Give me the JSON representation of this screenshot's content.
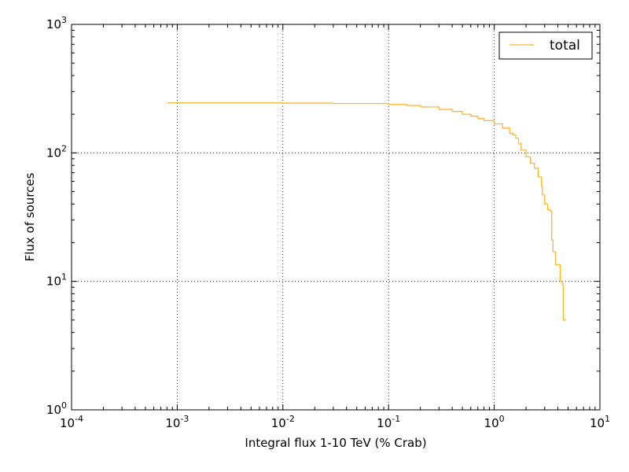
{
  "chart_data": {
    "type": "line",
    "xlabel": "Integral flux 1-10 TeV (% Crab)",
    "ylabel": "Flux of sources",
    "xscale": "log",
    "yscale": "log",
    "xlim": [
      0.0001,
      10
    ],
    "ylim": [
      1,
      1000
    ],
    "grid": true,
    "legend_position": "top-right",
    "x_ticks": [
      {
        "base": "10",
        "exp": "-4",
        "value": 0.0001
      },
      {
        "base": "10",
        "exp": "-3",
        "value": 0.001
      },
      {
        "base": "10",
        "exp": "-2",
        "value": 0.01
      },
      {
        "base": "10",
        "exp": "-1",
        "value": 0.1
      },
      {
        "base": "10",
        "exp": "0",
        "value": 1
      },
      {
        "base": "10",
        "exp": "1",
        "value": 10
      }
    ],
    "y_ticks": [
      {
        "base": "10",
        "exp": "0",
        "value": 1
      },
      {
        "base": "10",
        "exp": "1",
        "value": 10
      },
      {
        "base": "10",
        "exp": "2",
        "value": 100
      },
      {
        "base": "10",
        "exp": "3",
        "value": 1000
      }
    ],
    "series": [
      {
        "name": "total",
        "color": "#FFB530",
        "step": true,
        "x": [
          0.0008,
          0.003,
          0.01,
          0.03,
          0.1,
          0.15,
          0.2,
          0.3,
          0.4,
          0.5,
          0.6,
          0.7,
          0.8,
          1.0,
          1.2,
          1.4,
          1.5,
          1.6,
          1.7,
          1.8,
          2.0,
          2.2,
          2.4,
          2.6,
          2.8,
          2.85,
          3.0,
          3.2,
          3.4,
          3.5,
          3.6,
          3.8,
          4.0,
          4.2,
          4.4,
          4.5,
          4.8
        ],
        "y": [
          245,
          245,
          244,
          242,
          238,
          234,
          228,
          218,
          210,
          200,
          193,
          185,
          178,
          168,
          156,
          142,
          138,
          130,
          118,
          105,
          93,
          83,
          76,
          65,
          55,
          47,
          40,
          36,
          35,
          21,
          17,
          13.5,
          13.5,
          10,
          9.5,
          5,
          5
        ]
      }
    ]
  }
}
